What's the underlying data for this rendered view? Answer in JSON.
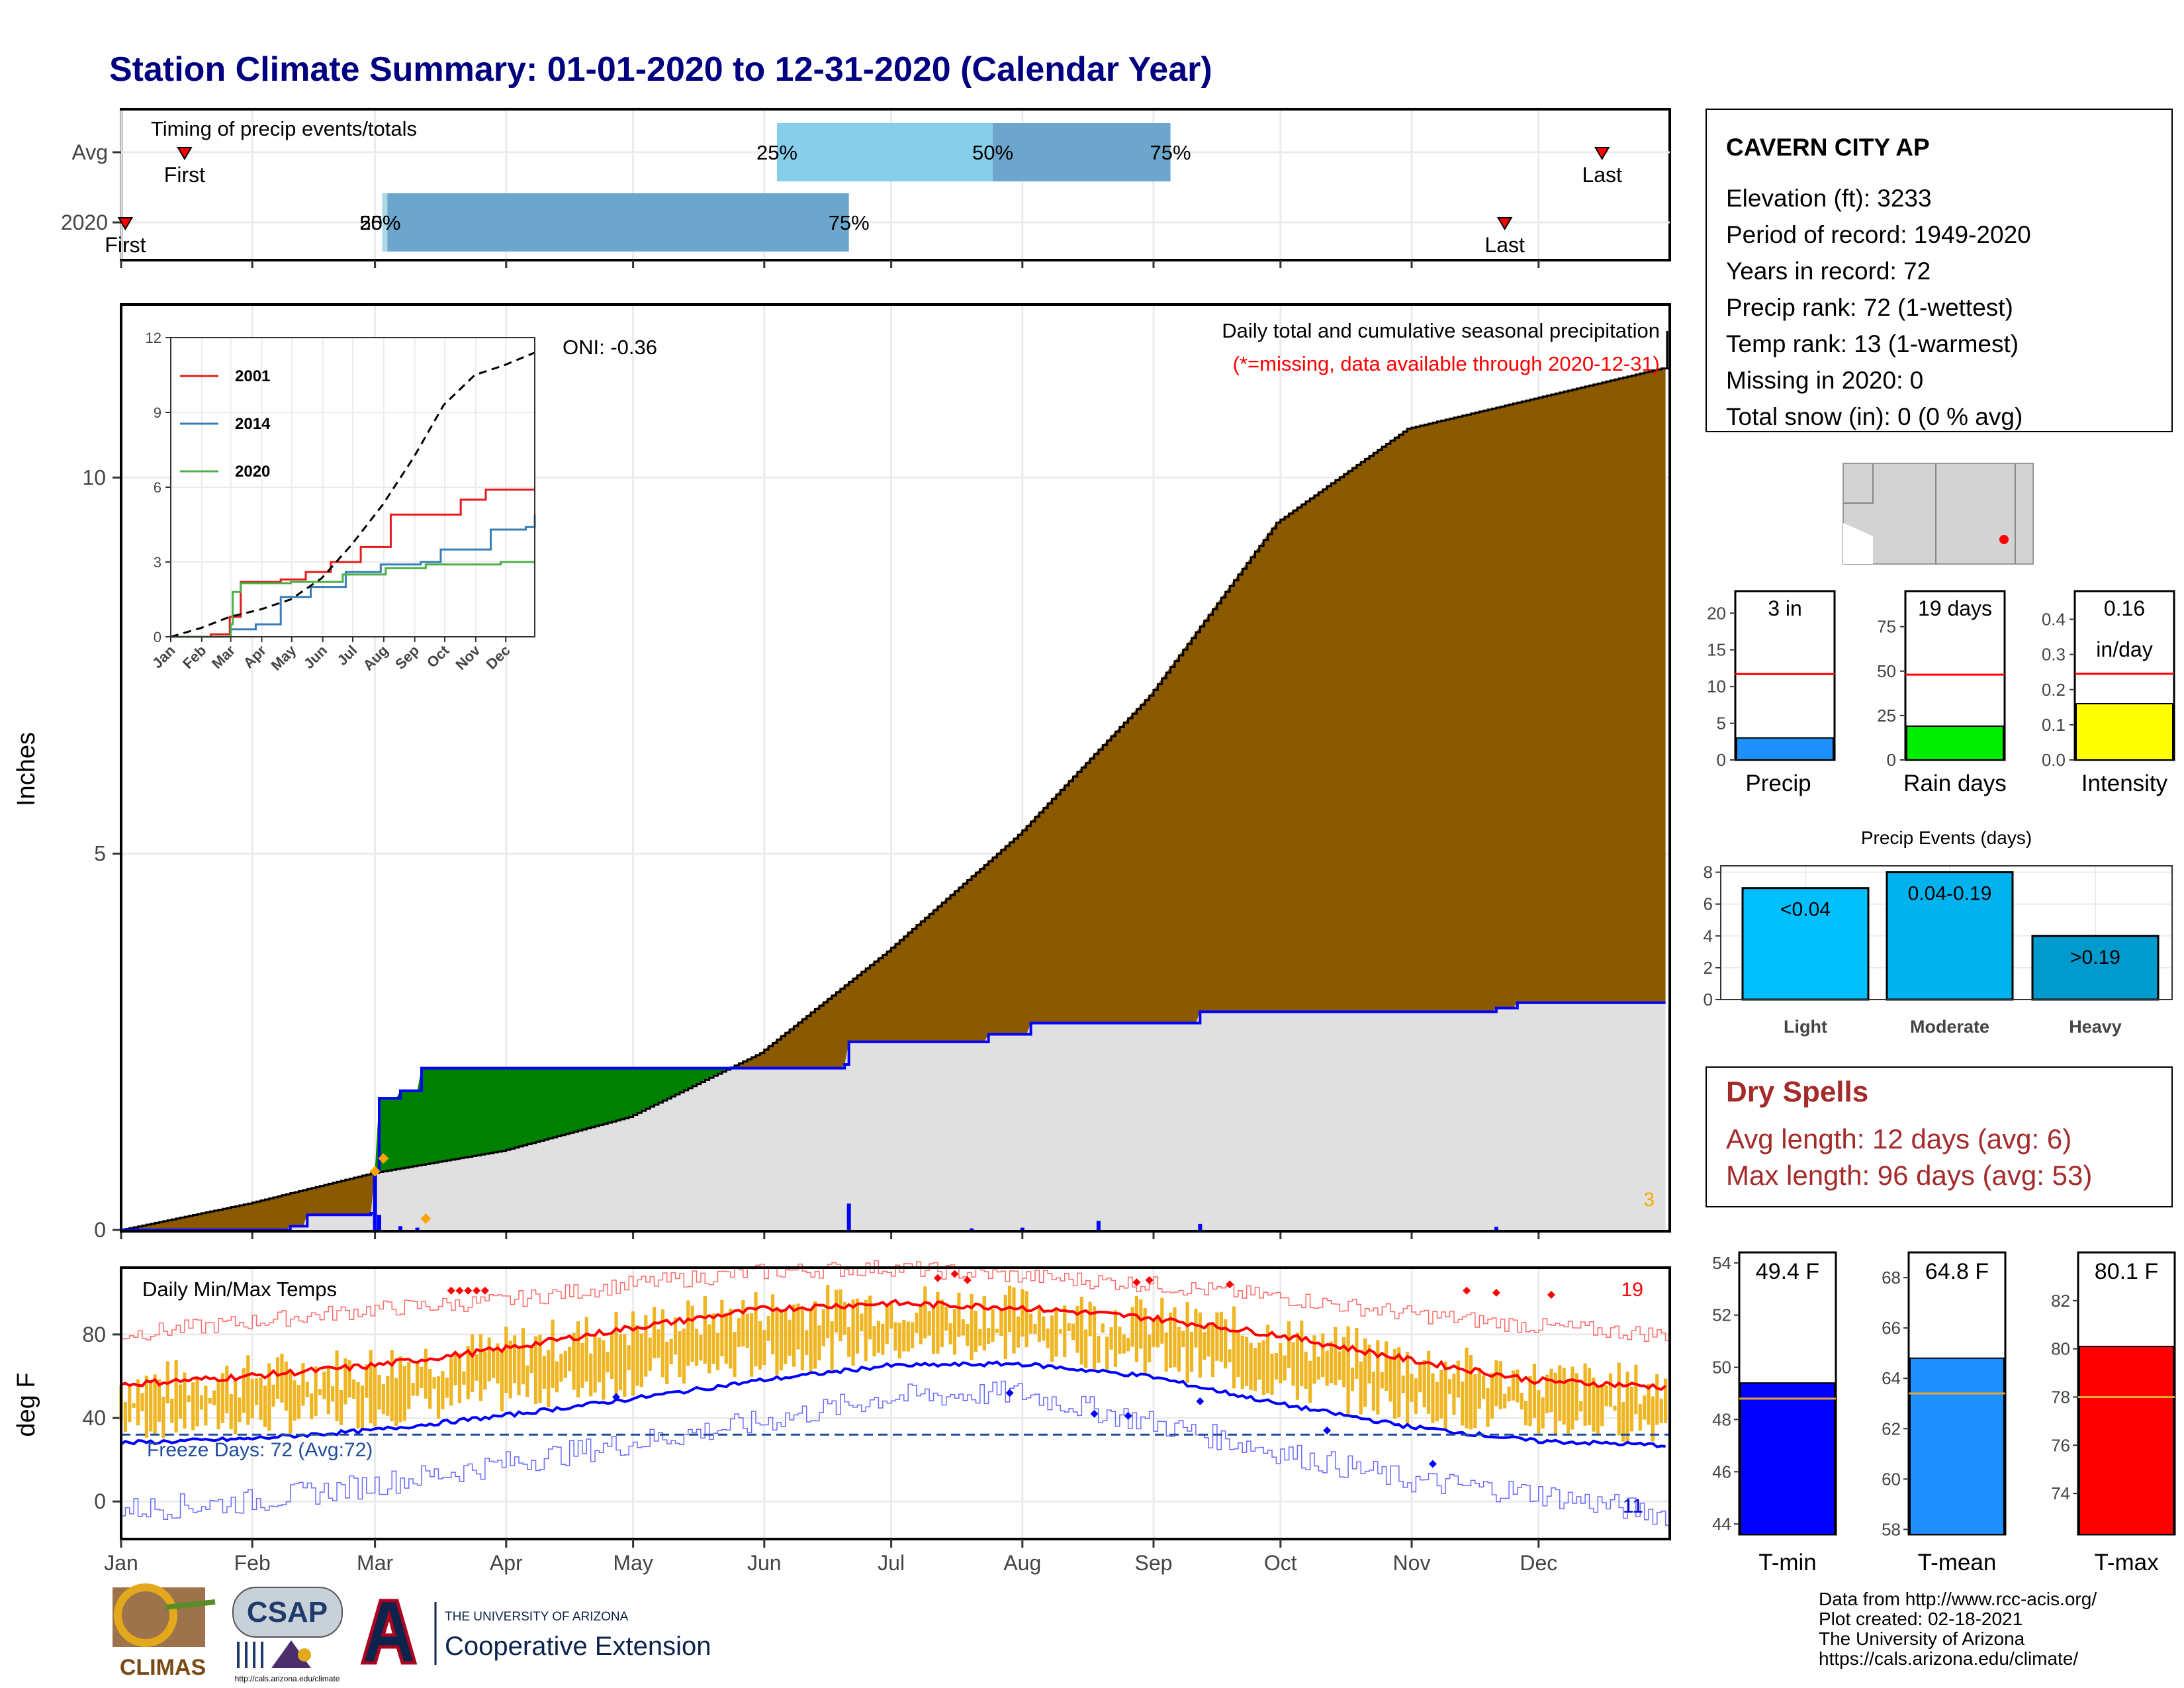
{
  "title": "Station Climate Summary: 01-01-2020 to 12-31-2020 (Calendar Year)",
  "colors": {
    "title": "#000080",
    "brown": "#8B5A00",
    "green": "#008000",
    "grey": "#E0E0E0",
    "blue": "#0000FF",
    "light_blue": "#87CEEB",
    "mid_blue": "#6CA6CD",
    "red": "#FF0000",
    "orange": "#EFB522",
    "dry_text": "#A52A2A"
  },
  "months": [
    "Jan",
    "Feb",
    "Mar",
    "Apr",
    "May",
    "Jun",
    "Jul",
    "Aug",
    "Sep",
    "Oct",
    "Nov",
    "Dec"
  ],
  "timing": {
    "title": "Timing of precip events/totals",
    "rows": [
      {
        "label": "Avg",
        "first_label": "First",
        "last_label": "Last",
        "first_day": 15,
        "last_day": 350,
        "q25": 155,
        "q50": 206,
        "q75": 248
      },
      {
        "label": "2020",
        "first_label": "First",
        "last_label": "Last",
        "first_day": 1,
        "last_day": 327,
        "q25": 62,
        "q50": 62,
        "q75": 172
      }
    ],
    "pct_labels": [
      "25%",
      "50%",
      "75%"
    ]
  },
  "precip": {
    "ylabel": "Inches",
    "y_ticks": [
      "0",
      "5",
      "10"
    ],
    "ylim": [
      0,
      12.3
    ],
    "annotation": "Daily total and cumulative seasonal precipitation",
    "missing_note": "(*=missing, data available through 2020-12-31)",
    "oni": "ONI: -0.36",
    "missing_count": "3",
    "avg_cum": [
      [
        0,
        0
      ],
      [
        30,
        0.35
      ],
      [
        59,
        0.75
      ],
      [
        90,
        1.05
      ],
      [
        120,
        1.5
      ],
      [
        151,
        2.35
      ],
      [
        181,
        3.7
      ],
      [
        212,
        5.25
      ],
      [
        243,
        7.1
      ],
      [
        273,
        9.4
      ],
      [
        304,
        10.65
      ],
      [
        334,
        11.05
      ],
      [
        364,
        11.45
      ]
    ],
    "obs_cum": [
      [
        0,
        0
      ],
      [
        40,
        0.05
      ],
      [
        44,
        0.2
      ],
      [
        59,
        0.22
      ],
      [
        60,
        0.8
      ],
      [
        61,
        1.75
      ],
      [
        66,
        1.85
      ],
      [
        71,
        2.15
      ],
      [
        171,
        2.2
      ],
      [
        172,
        2.5
      ],
      [
        205,
        2.6
      ],
      [
        215,
        2.75
      ],
      [
        255,
        2.9
      ],
      [
        325,
        2.95
      ],
      [
        330,
        3.02
      ],
      [
        365,
        3.02
      ]
    ],
    "daily": [
      [
        60,
        0.8
      ],
      [
        61,
        0.2
      ],
      [
        66,
        0.05
      ],
      [
        70,
        0.03
      ],
      [
        172,
        0.35
      ],
      [
        201,
        0.02
      ],
      [
        213,
        0.03
      ],
      [
        231,
        0.12
      ],
      [
        255,
        0.08
      ],
      [
        325,
        0.04
      ]
    ],
    "diamonds": [
      [
        60,
        0.78
      ],
      [
        62,
        0.95
      ],
      [
        72,
        0.15
      ]
    ],
    "inset": {
      "y_ticks": [
        "0",
        "3",
        "6",
        "9",
        "12"
      ],
      "ylim": [
        0,
        12
      ],
      "months": [
        "Jan",
        "Feb",
        "Mar",
        "Apr",
        "May",
        "Jun",
        "Jul",
        "Aug",
        "Sep",
        "Oct",
        "Nov",
        "Dec"
      ],
      "series": [
        {
          "name": "2001",
          "color": "#E41A1C",
          "values": [
            [
              0,
              0
            ],
            [
              40,
              0.1
            ],
            [
              59,
              0.8
            ],
            [
              70,
              2.2
            ],
            [
              110,
              2.3
            ],
            [
              135,
              2.6
            ],
            [
              160,
              3.0
            ],
            [
              190,
              3.6
            ],
            [
              220,
              4.9
            ],
            [
              255,
              4.9
            ],
            [
              290,
              5.5
            ],
            [
              315,
              5.9
            ],
            [
              340,
              5.9
            ],
            [
              364,
              5.9
            ]
          ]
        },
        {
          "name": "2014",
          "color": "#377EB8",
          "values": [
            [
              0,
              0
            ],
            [
              60,
              0.3
            ],
            [
              85,
              0.5
            ],
            [
              110,
              1.6
            ],
            [
              140,
              2.0
            ],
            [
              175,
              2.6
            ],
            [
              210,
              2.9
            ],
            [
              250,
              3.0
            ],
            [
              270,
              3.5
            ],
            [
              300,
              3.5
            ],
            [
              320,
              4.3
            ],
            [
              355,
              4.4
            ],
            [
              364,
              4.9
            ]
          ]
        },
        {
          "name": "2020",
          "color": "#4DAF4A",
          "values": [
            [
              0,
              0
            ],
            [
              60,
              0.5
            ],
            [
              62,
              1.8
            ],
            [
              70,
              2.15
            ],
            [
              120,
              2.2
            ],
            [
              172,
              2.5
            ],
            [
              215,
              2.75
            ],
            [
              255,
              2.9
            ],
            [
              330,
              3.0
            ],
            [
              364,
              3.0
            ]
          ]
        }
      ],
      "avg_values": [
        [
          0,
          0
        ],
        [
          30,
          0.35
        ],
        [
          59,
          0.8
        ],
        [
          90,
          1.1
        ],
        [
          120,
          1.5
        ],
        [
          151,
          2.35
        ],
        [
          181,
          3.7
        ],
        [
          212,
          5.3
        ],
        [
          243,
          7.2
        ],
        [
          273,
          9.3
        ],
        [
          304,
          10.5
        ],
        [
          334,
          10.9
        ],
        [
          364,
          11.4
        ]
      ]
    }
  },
  "temp": {
    "title": "Daily Min/Max Temps",
    "ylabel": "deg F",
    "y_ticks": [
      "0",
      "40",
      "80"
    ],
    "ylim": [
      -18,
      112
    ],
    "freeze_label": "Freeze Days: 72 (Avg:72)",
    "freeze_line": 32,
    "hot_count": "19",
    "cold_count": "11",
    "avg_max_pts": [
      [
        0,
        56
      ],
      [
        30,
        60
      ],
      [
        59,
        65
      ],
      [
        90,
        73
      ],
      [
        120,
        83
      ],
      [
        151,
        92
      ],
      [
        181,
        95
      ],
      [
        212,
        93
      ],
      [
        243,
        88
      ],
      [
        273,
        80
      ],
      [
        304,
        68
      ],
      [
        334,
        58
      ],
      [
        364,
        55
      ]
    ],
    "avg_min_pts": [
      [
        0,
        28
      ],
      [
        30,
        30
      ],
      [
        59,
        34
      ],
      [
        90,
        41
      ],
      [
        120,
        49
      ],
      [
        151,
        58
      ],
      [
        181,
        65
      ],
      [
        212,
        66
      ],
      [
        243,
        60
      ],
      [
        273,
        47
      ],
      [
        304,
        36
      ],
      [
        334,
        29
      ],
      [
        364,
        27
      ]
    ],
    "rec_max_pts": [
      [
        0,
        80
      ],
      [
        30,
        86
      ],
      [
        59,
        92
      ],
      [
        90,
        96
      ],
      [
        120,
        104
      ],
      [
        151,
        110
      ],
      [
        181,
        112
      ],
      [
        212,
        108
      ],
      [
        243,
        104
      ],
      [
        273,
        98
      ],
      [
        304,
        90
      ],
      [
        334,
        84
      ],
      [
        364,
        80
      ]
    ],
    "rec_min_pts": [
      [
        0,
        -4
      ],
      [
        30,
        0
      ],
      [
        59,
        8
      ],
      [
        90,
        18
      ],
      [
        120,
        28
      ],
      [
        151,
        38
      ],
      [
        181,
        50
      ],
      [
        212,
        52
      ],
      [
        243,
        38
      ],
      [
        273,
        24
      ],
      [
        304,
        10
      ],
      [
        334,
        4
      ],
      [
        364,
        -6
      ]
    ]
  },
  "station": {
    "name": "CAVERN CITY AP",
    "lines": [
      "Elevation (ft): 3233",
      "Period of record: 1949-2020",
      "Years in record: 72",
      "Precip rank: 72 (1-wettest)",
      "Temp rank: 13 (1-warmest)",
      "Missing in 2020: 0",
      "Total snow (in): 0 (0 % avg)"
    ]
  },
  "small_bars": [
    {
      "label": "Precip",
      "value_text": "3 in",
      "value": 3.0,
      "avg": 11.7,
      "ylim": [
        0,
        23
      ],
      "ticks": [
        "0",
        "5",
        "10",
        "15",
        "20"
      ],
      "tick_vals": [
        0,
        5,
        10,
        15,
        20
      ],
      "color": "#1E90FF"
    },
    {
      "label": "Rain days",
      "value_text": "19 days",
      "value": 19,
      "avg": 48,
      "ylim": [
        0,
        95
      ],
      "ticks": [
        "0",
        "25",
        "50",
        "75"
      ],
      "tick_vals": [
        0,
        25,
        50,
        75
      ],
      "color": "#00EE00"
    },
    {
      "label": "Intensity",
      "value_text": "0.16",
      "value_text2": "in/day",
      "value": 0.16,
      "avg": 0.245,
      "ylim": [
        0,
        0.48
      ],
      "ticks": [
        "0.0",
        "0.1",
        "0.2",
        "0.3",
        "0.4"
      ],
      "tick_vals": [
        0,
        0.1,
        0.2,
        0.3,
        0.4
      ],
      "color": "#FFFF00"
    }
  ],
  "events": {
    "title": "Precip Events (days)",
    "ylim": [
      0,
      8.4
    ],
    "ticks": [
      "0",
      "2",
      "4",
      "6",
      "8"
    ],
    "tick_vals": [
      0,
      2,
      4,
      6,
      8
    ],
    "bars": [
      {
        "label": "Light",
        "range": "<0.04",
        "value": 7,
        "color": "#00BFFF"
      },
      {
        "label": "Moderate",
        "range": "0.04-0.19",
        "value": 8,
        "color": "#00B2EE"
      },
      {
        "label": "Heavy",
        "range": ">0.19",
        "value": 4,
        "color": "#009ACD"
      }
    ]
  },
  "dry": {
    "title": "Dry Spells",
    "avg_line": "Avg length: 12 days (avg: 6)",
    "max_line": "Max length: 96 days (avg: 53)"
  },
  "temp_bars": [
    {
      "label": "T-min",
      "value_text": "49.4 F",
      "value": 49.4,
      "avg": 48.8,
      "ylim": [
        43.6,
        54.4
      ],
      "ticks": [
        "44",
        "46",
        "48",
        "50",
        "52",
        "54"
      ],
      "tick_vals": [
        44,
        46,
        48,
        50,
        52,
        54
      ],
      "color": "#0000FF"
    },
    {
      "label": "T-mean",
      "value_text": "64.8 F",
      "value": 64.8,
      "avg": 63.4,
      "ylim": [
        57.8,
        69.0
      ],
      "ticks": [
        "58",
        "60",
        "62",
        "64",
        "66",
        "68"
      ],
      "tick_vals": [
        58,
        60,
        62,
        64,
        66,
        68
      ],
      "color": "#1E90FF"
    },
    {
      "label": "T-max",
      "value_text": "80.1 F",
      "value": 80.1,
      "avg": 78.0,
      "ylim": [
        72.3,
        84.0
      ],
      "ticks": [
        "74",
        "76",
        "78",
        "80",
        "82"
      ],
      "tick_vals": [
        74,
        76,
        78,
        80,
        82
      ],
      "color": "#FF0000"
    }
  ],
  "footer": {
    "lines": [
      "Data from http://www.rcc-acis.org/",
      "Plot created: 02-18-2021",
      "The University of Arizona",
      "https://cals.arizona.edu/climate/"
    ],
    "climas": "CLIMAS",
    "csap": "CSAP",
    "csap_url": "http://cals.arizona.edu/climate",
    "ua_small": "THE UNIVERSITY OF ARIZONA",
    "ua_big": "Cooperative Extension"
  }
}
